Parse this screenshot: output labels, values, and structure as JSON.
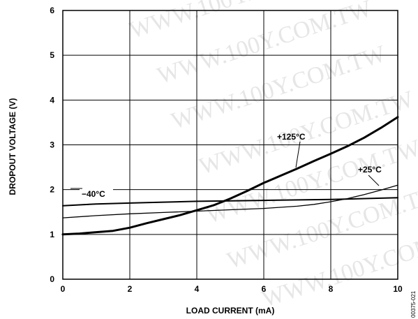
{
  "chart_data": {
    "type": "line",
    "title": "",
    "xlabel": "LOAD CURRENT (mA)",
    "ylabel": "DROPOUT VOLTAGE (V)",
    "xlim": [
      0,
      10
    ],
    "ylim": [
      0,
      6
    ],
    "xticks": [
      "0",
      "2",
      "4",
      "6",
      "8",
      "10"
    ],
    "yticks": [
      "0",
      "1",
      "2",
      "3",
      "4",
      "5",
      "6"
    ],
    "grid": true,
    "series": [
      {
        "name": "+125°C",
        "stroke": "heavy",
        "x": [
          0,
          0.5,
          1,
          1.5,
          2,
          2.5,
          3,
          3.5,
          4,
          4.5,
          5,
          5.5,
          6,
          6.5,
          7,
          7.5,
          8,
          8.5,
          9,
          9.5,
          10
        ],
        "y": [
          1.0,
          1.02,
          1.05,
          1.08,
          1.15,
          1.25,
          1.34,
          1.43,
          1.54,
          1.65,
          1.8,
          1.97,
          2.15,
          2.31,
          2.47,
          2.64,
          2.8,
          2.97,
          3.16,
          3.38,
          3.62
        ]
      },
      {
        "name": "+25°C",
        "stroke": "light",
        "x": [
          0,
          1,
          2,
          3,
          4,
          5,
          6,
          7,
          7.5,
          8,
          8.5,
          9,
          9.5,
          10
        ],
        "y": [
          1.37,
          1.42,
          1.46,
          1.49,
          1.52,
          1.55,
          1.58,
          1.63,
          1.67,
          1.73,
          1.8,
          1.89,
          1.99,
          2.1
        ]
      },
      {
        "name": "−40°C",
        "stroke": "medium",
        "x": [
          0,
          1,
          2,
          3,
          4,
          5,
          6,
          7,
          8,
          9,
          10
        ],
        "y": [
          1.64,
          1.68,
          1.7,
          1.72,
          1.74,
          1.75,
          1.76,
          1.77,
          1.78,
          1.8,
          1.82
        ]
      }
    ],
    "annotations": [
      {
        "text": "+125°C",
        "series": 0
      },
      {
        "text": "+25°C",
        "series": 1
      },
      {
        "text": "−40°C",
        "series": 2
      }
    ],
    "figure_code": "00375-021",
    "watermark": "WWW.100Y.COM.TW"
  }
}
